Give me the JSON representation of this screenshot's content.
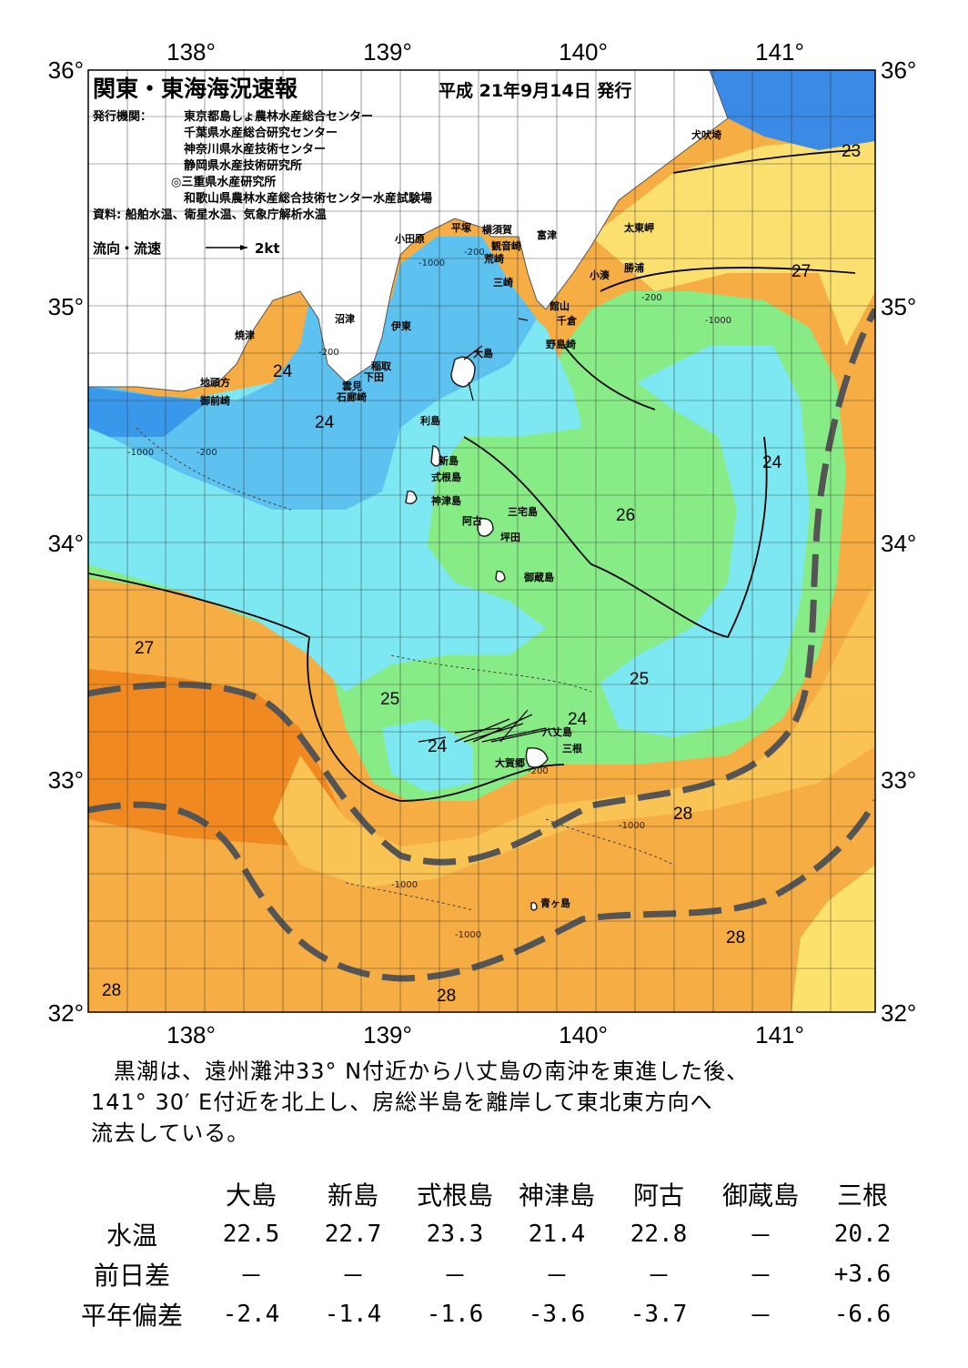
{
  "map": {
    "title": "関東・東海海況速報",
    "issue_date": "平成 21年9月14日 発行",
    "issuer_label": "発行機関：",
    "issuers": [
      "東京都島しょ農林水産総合センター",
      "千葉県水産総合研究センター",
      "神奈川県水産技術センター",
      "静岡県水産技術研究所",
      "◎三重県水産研究所",
      "和歌山県農林水産総合技術センター水産試験場"
    ],
    "source": "資料: 船舶水温、衛星水温、気象庁解析水温",
    "flow_legend": "流向・流速",
    "flow_scale": "2kt",
    "lon_labels": [
      "138°",
      "139°",
      "140°",
      "141°"
    ],
    "lat_labels": [
      "36°",
      "35°",
      "34°",
      "33°",
      "32°"
    ],
    "temp_labels": [
      "23",
      "27",
      "24",
      "24",
      "26",
      "24",
      "27",
      "25",
      "25",
      "24",
      "24",
      "28",
      "28",
      "28",
      "28"
    ],
    "depth_labels": [
      "-200",
      "-1000"
    ],
    "places": [
      "犬吠埼",
      "太東岬",
      "勝浦",
      "小湊",
      "富津",
      "館山",
      "千倉",
      "野島崎",
      "横須賀",
      "観音崎",
      "平塚",
      "荒崎",
      "三崎",
      "小田原",
      "沼津",
      "伊東",
      "焼津",
      "稲取",
      "下田",
      "雲見",
      "石廊崎",
      "地頭方",
      "御前崎",
      "大島",
      "利島",
      "新島",
      "式根島",
      "神津島",
      "三宅島",
      "阿古",
      "坪田",
      "御蔵島",
      "八丈島",
      "三根",
      "大賀郷",
      "青ヶ島"
    ]
  },
  "summary": [
    "　黒潮は、遠州灘沖33° N付近から八丈島の南沖を東進した後、",
    "141° 30′ E付近を北上し、房総半島を離岸して東北東方向へ",
    "流去している。"
  ],
  "table": {
    "columns": [
      "大島",
      "新島",
      "式根島",
      "神津島",
      "阿古",
      "御蔵島",
      "三根"
    ],
    "rows": [
      {
        "label": "水温",
        "values": [
          "22.5",
          "22.7",
          "23.3",
          "21.4",
          "22.8",
          "－",
          "20.2"
        ]
      },
      {
        "label": "前日差",
        "values": [
          "－",
          "－",
          "－",
          "－",
          "－",
          "－",
          "+3.6"
        ]
      },
      {
        "label": "平年偏差",
        "values": [
          "-2.4",
          "-1.4",
          "-1.6",
          "-3.6",
          "-3.7",
          "－",
          "-6.6"
        ]
      }
    ]
  },
  "colors": {
    "coldest": "#3b8ce8",
    "cold": "#5cc4f0",
    "cool": "#80e8f0",
    "mild": "#84f090",
    "warm": "#f8e070",
    "hot": "#f4a83c",
    "hottest": "#f07c14",
    "land": "#ffffff",
    "kuroshio_axis": "#505050"
  }
}
